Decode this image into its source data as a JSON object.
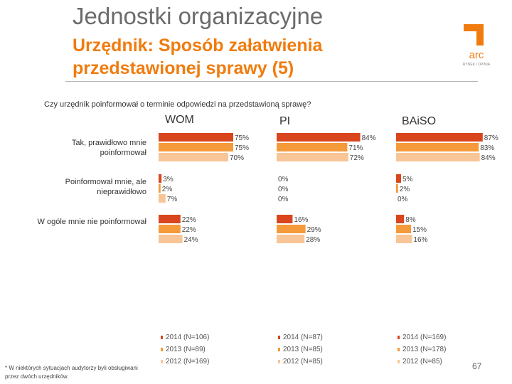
{
  "header": {
    "title": "Jednostki organizacyjne",
    "subtitle": "Urzędnik: Sposób załatwienia przedstawionej sprawy (5)"
  },
  "logo": {
    "text": "arc",
    "tagline": "RYNEK I OPINIA"
  },
  "chart_data": {
    "type": "bar",
    "orientation": "horizontal",
    "question": "Czy urzędnik poinformował o terminie odpowiedzi na przedstawioną sprawę?",
    "categories": [
      "Tak, prawidłowo mnie poinformował",
      "Poinformował mnie, ale nieprawidłowo",
      "W ogóle mnie nie poinformował"
    ],
    "panels": [
      {
        "title": "WOM",
        "series": [
          {
            "name": "2014 (N=106)",
            "values": [
              75,
              3,
              22
            ]
          },
          {
            "name": "2013 (N=89)",
            "values": [
              75,
              2,
              22
            ]
          },
          {
            "name": "2012 (N=169)",
            "values": [
              70,
              7,
              24
            ]
          }
        ]
      },
      {
        "title": "PI",
        "series": [
          {
            "name": "2014 (N=87)",
            "values": [
              84,
              0,
              16
            ]
          },
          {
            "name": "2013 (N=85)",
            "values": [
              71,
              0,
              29
            ]
          },
          {
            "name": "2012 (N=85)",
            "values": [
              72,
              0,
              28
            ]
          }
        ]
      },
      {
        "title": "BAiSO",
        "series": [
          {
            "name": "2014 (N=169)",
            "values": [
              87,
              5,
              8
            ]
          },
          {
            "name": "2013 (N=178)",
            "values": [
              83,
              2,
              15
            ]
          },
          {
            "name": "2012 (N=85)",
            "values": [
              84,
              0,
              16
            ]
          }
        ]
      }
    ],
    "series_colors": [
      "#d9461e",
      "#f59a3a",
      "#f8c596"
    ],
    "value_suffix": "%",
    "xlim": [
      0,
      100
    ]
  },
  "footnote": "* W niektórych sytuacjach audytorzy byli obsługiwani przez dwóch urzędników.",
  "page_number": "67"
}
